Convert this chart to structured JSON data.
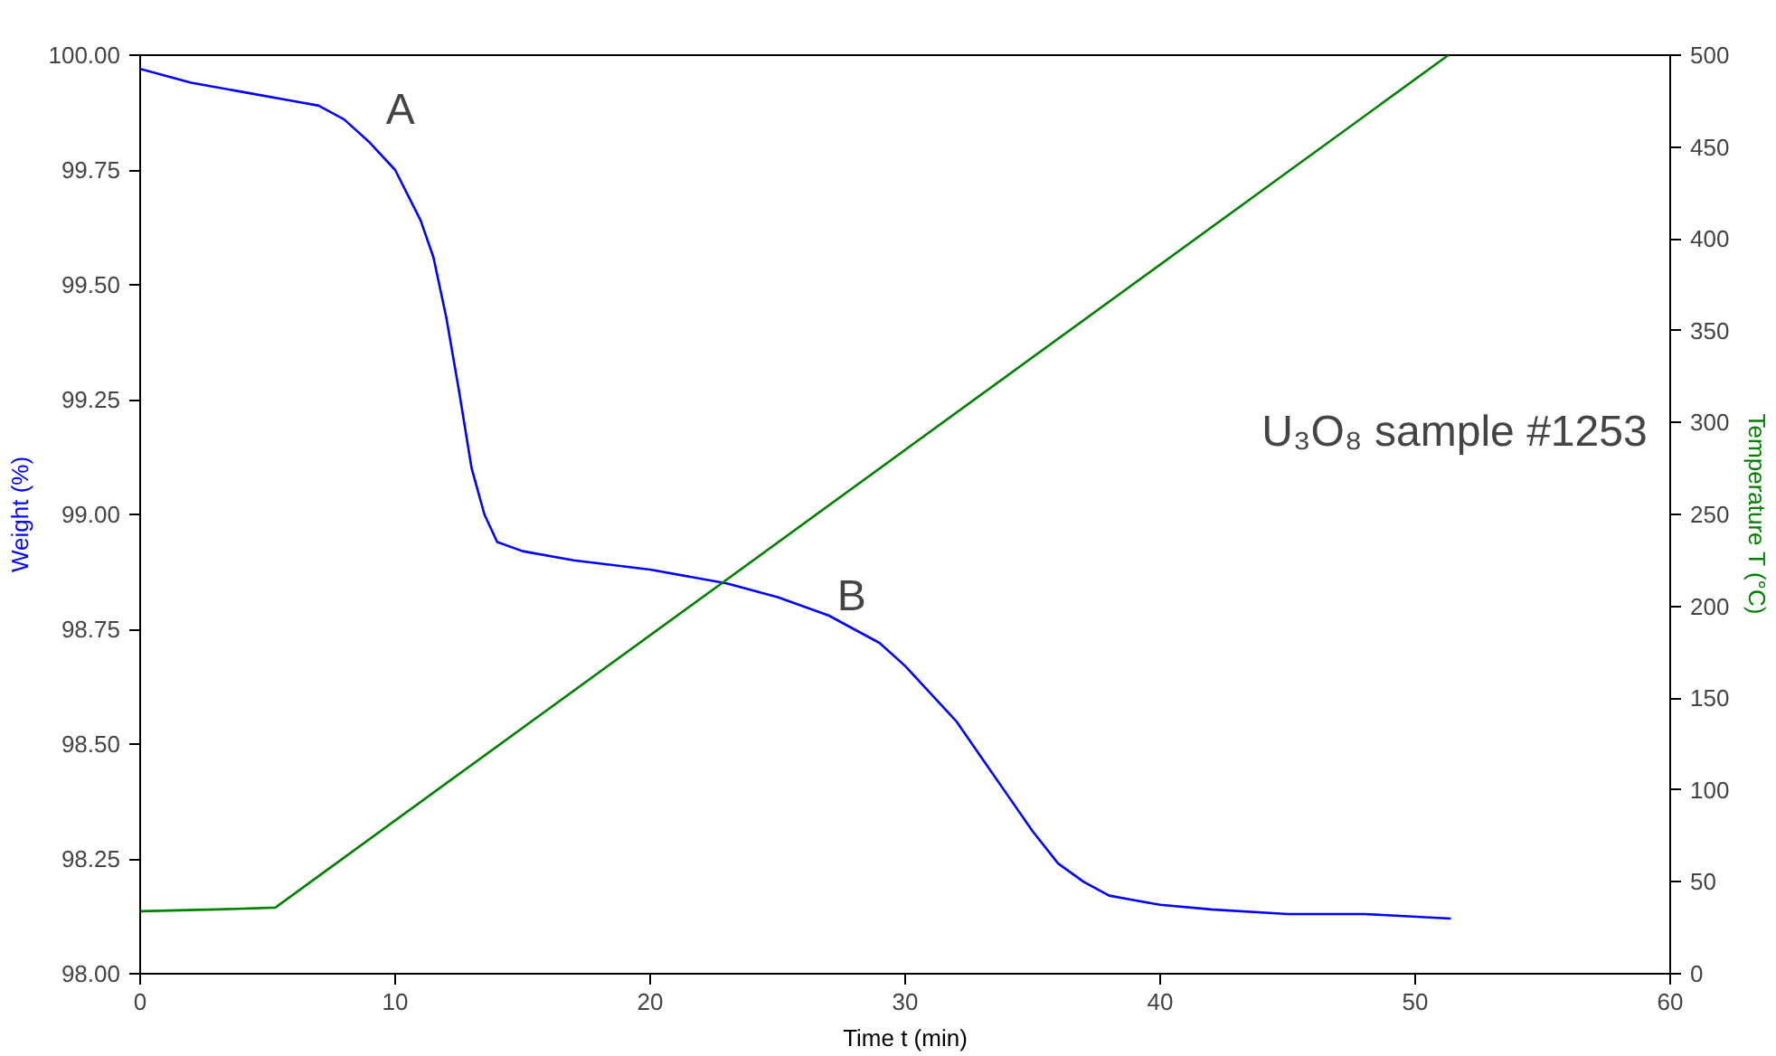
{
  "chart_data": {
    "type": "line",
    "xlabel": "Time t (min)",
    "ylabel": "Weight (%)",
    "y2label": "Temperature T (°C)",
    "xlim": [
      0,
      60
    ],
    "xticks": [
      0,
      10,
      20,
      30,
      40,
      50,
      60
    ],
    "ylim": [
      98,
      100
    ],
    "yticks": [
      {
        "value": 98,
        "label": "98.00"
      },
      {
        "value": 98.25,
        "label": "98.25"
      },
      {
        "value": 98.5,
        "label": "98.50"
      },
      {
        "value": 98.75,
        "label": "98.75"
      },
      {
        "value": 99,
        "label": "99.00"
      },
      {
        "value": 99.25,
        "label": "99.25"
      },
      {
        "value": 99.5,
        "label": "99.50"
      },
      {
        "value": 99.75,
        "label": "99.75"
      },
      {
        "value": 100,
        "label": "100.00"
      }
    ],
    "y2lim": [
      0,
      500
    ],
    "y2ticks": [
      0,
      50,
      100,
      150,
      200,
      250,
      300,
      350,
      400,
      450,
      500
    ],
    "grid": false,
    "line_style": "solid",
    "series": [
      {
        "color": "#0000ff",
        "x": [
          0,
          2,
          4,
          6,
          7,
          8,
          9,
          10,
          11,
          11.5,
          12,
          12.5,
          13,
          13.5,
          14,
          15,
          17,
          20,
          23,
          25,
          27,
          28,
          29,
          30,
          31,
          32,
          33,
          34,
          35,
          36,
          37,
          38,
          39,
          40,
          42,
          45,
          48,
          51.4
        ],
        "values": [
          99.97,
          99.94,
          99.92,
          99.9,
          99.89,
          99.86,
          99.81,
          99.75,
          99.64,
          99.56,
          99.43,
          99.27,
          99.1,
          99.0,
          98.94,
          98.92,
          98.9,
          98.88,
          98.85,
          98.82,
          98.78,
          98.75,
          98.72,
          98.67,
          98.61,
          98.55,
          98.47,
          98.39,
          98.31,
          98.24,
          98.2,
          98.17,
          98.16,
          98.15,
          98.14,
          98.13,
          98.13,
          98.12
        ]
      },
      {
        "color": "#008000",
        "axis": "y2",
        "x": [
          0,
          3,
          5.3,
          51.3
        ],
        "values": [
          34,
          35,
          36,
          500
        ]
      }
    ],
    "annotations": [
      "A",
      "B",
      "U₃O₈ sample #1253"
    ]
  }
}
